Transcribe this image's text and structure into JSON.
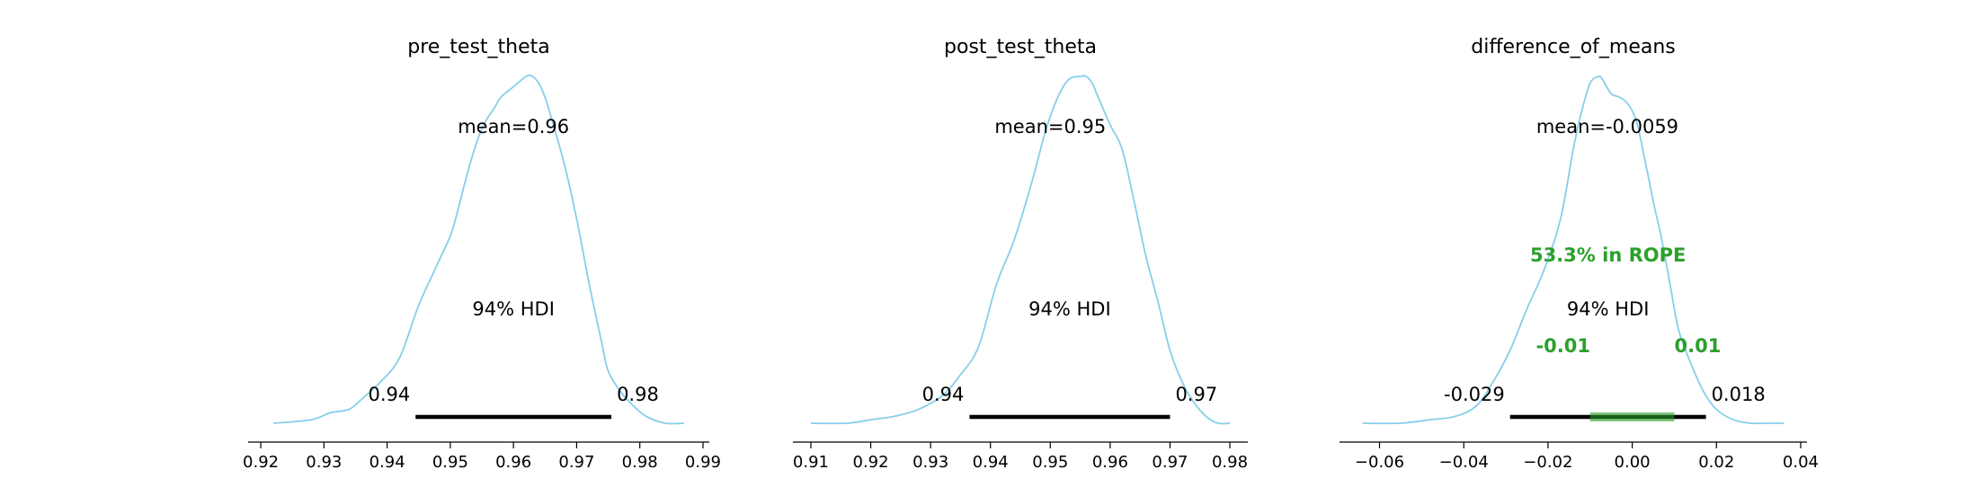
{
  "colors": {
    "kde": "#87ceeb",
    "hdi": "#000000",
    "rope": "#2ca02c",
    "axis": "#000000"
  },
  "chart_data": [
    {
      "type": "line",
      "title": "pre_test_theta",
      "xlabel": "",
      "ylabel": "",
      "xlim": [
        0.918,
        0.991
      ],
      "xticks": [
        0.92,
        0.93,
        0.94,
        0.95,
        0.96,
        0.97,
        0.98,
        0.99
      ],
      "xtick_labels": [
        "0.92",
        "0.93",
        "0.94",
        "0.95",
        "0.96",
        "0.97",
        "0.98",
        "0.99"
      ],
      "density_x": [
        0.922,
        0.928,
        0.931,
        0.934,
        0.936,
        0.939,
        0.942,
        0.945,
        0.948,
        0.95,
        0.951,
        0.953,
        0.955,
        0.957,
        0.958,
        0.96,
        0.962,
        0.963,
        0.964,
        0.965,
        0.966,
        0.968,
        0.97,
        0.972,
        0.974,
        0.975,
        0.977,
        0.979,
        0.981,
        0.984,
        0.987
      ],
      "density_y": [
        0.0,
        0.01,
        0.03,
        0.04,
        0.07,
        0.12,
        0.19,
        0.34,
        0.46,
        0.54,
        0.6,
        0.74,
        0.85,
        0.91,
        0.94,
        0.97,
        1.0,
        1.0,
        0.98,
        0.94,
        0.88,
        0.75,
        0.59,
        0.4,
        0.23,
        0.15,
        0.09,
        0.05,
        0.02,
        0.0,
        0.0
      ],
      "mean_label": "mean=0.96",
      "mean": 0.96,
      "hdi_label": "94% HDI",
      "hdi": [
        0.9445,
        0.9755
      ],
      "hdi_low_label": "0.94",
      "hdi_high_label": "0.98"
    },
    {
      "type": "line",
      "title": "post_test_theta",
      "xlabel": "",
      "ylabel": "",
      "xlim": [
        0.907,
        0.983
      ],
      "xticks": [
        0.91,
        0.92,
        0.93,
        0.94,
        0.95,
        0.96,
        0.97,
        0.98
      ],
      "xtick_labels": [
        "0.91",
        "0.92",
        "0.93",
        "0.94",
        "0.95",
        "0.96",
        "0.97",
        "0.98"
      ],
      "density_x": [
        0.91,
        0.916,
        0.92,
        0.924,
        0.928,
        0.932,
        0.935,
        0.938,
        0.941,
        0.944,
        0.947,
        0.949,
        0.951,
        0.953,
        0.955,
        0.956,
        0.957,
        0.958,
        0.96,
        0.962,
        0.964,
        0.966,
        0.968,
        0.97,
        0.972,
        0.974,
        0.976,
        0.978,
        0.98
      ],
      "density_y": [
        0.0,
        0.0,
        0.01,
        0.02,
        0.04,
        0.08,
        0.14,
        0.22,
        0.4,
        0.53,
        0.7,
        0.83,
        0.93,
        0.99,
        1.0,
        1.0,
        0.98,
        0.94,
        0.86,
        0.79,
        0.64,
        0.48,
        0.35,
        0.21,
        0.12,
        0.06,
        0.02,
        0.0,
        0.0
      ],
      "mean_label": "mean=0.95",
      "mean": 0.95,
      "hdi_label": "94% HDI",
      "hdi": [
        0.9365,
        0.97
      ],
      "hdi_low_label": "0.94",
      "hdi_high_label": "0.97"
    },
    {
      "type": "line",
      "title": "difference_of_means",
      "xlabel": "",
      "ylabel": "",
      "xlim": [
        -0.0695,
        0.0415
      ],
      "xticks": [
        -0.06,
        -0.04,
        -0.02,
        0.0,
        0.02,
        0.04
      ],
      "xtick_labels": [
        "−0.06",
        "−0.04",
        "−0.02",
        "0.00",
        "0.02",
        "0.04"
      ],
      "density_x": [
        -0.064,
        -0.055,
        -0.048,
        -0.042,
        -0.037,
        -0.033,
        -0.029,
        -0.025,
        -0.021,
        -0.017,
        -0.014,
        -0.012,
        -0.01,
        -0.008,
        -0.007,
        -0.005,
        -0.003,
        -0.001,
        0.001,
        0.003,
        0.005,
        0.007,
        0.009,
        0.011,
        0.014,
        0.017,
        0.02,
        0.024,
        0.028,
        0.032,
        0.036
      ],
      "density_y": [
        0.0,
        0.0,
        0.01,
        0.02,
        0.05,
        0.12,
        0.21,
        0.33,
        0.44,
        0.59,
        0.79,
        0.9,
        0.98,
        1.0,
        0.99,
        0.95,
        0.94,
        0.92,
        0.87,
        0.76,
        0.64,
        0.53,
        0.4,
        0.27,
        0.17,
        0.09,
        0.04,
        0.01,
        0.0,
        0.0,
        0.0
      ],
      "mean_label": "mean=-0.0059",
      "mean": -0.0059,
      "hdi_label": "94% HDI",
      "hdi": [
        -0.029,
        0.0175
      ],
      "hdi_low_label": "-0.029",
      "hdi_high_label": "0.018",
      "rope": [
        -0.01,
        0.01
      ],
      "rope_label": "53.3% in ROPE",
      "rope_low_label": "-0.01",
      "rope_high_label": "0.01"
    }
  ]
}
